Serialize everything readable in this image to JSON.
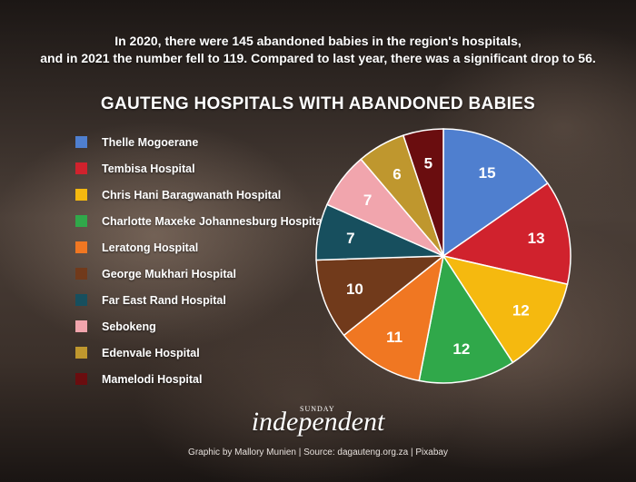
{
  "intro": {
    "line1": "In 2020, there were 145 abandoned babies in the region's hospitals,",
    "line2": "and in 2021 the number fell to 119. Compared to last year, there was a significant drop to 56."
  },
  "chart_data": {
    "type": "pie",
    "title": "GAUTENG HOSPITALS WITH ABANDONED BABIES",
    "legend_position": "left",
    "slices": [
      {
        "label": "Thelle Mogoerane",
        "value": 15,
        "color": "#4f7fcf"
      },
      {
        "label": "Tembisa Hospital",
        "value": 13,
        "color": "#d0222d"
      },
      {
        "label": "Chris Hani Baragwanath Hospital",
        "value": 12,
        "color": "#f5b90f"
      },
      {
        "label": "Charlotte Maxeke Johannesburg Hospital",
        "value": 12,
        "color": "#30a84a"
      },
      {
        "label": "Leratong Hospital",
        "value": 11,
        "color": "#f07722"
      },
      {
        "label": "George Mukhari Hospital",
        "value": 10,
        "color": "#713a1b"
      },
      {
        "label": "Far East Rand Hospital",
        "value": 7,
        "color": "#174f5e"
      },
      {
        "label": "Sebokeng",
        "value": 7,
        "color": "#f1a5ad"
      },
      {
        "label": "Edenvale Hospital",
        "value": 6,
        "color": "#bf972e"
      },
      {
        "label": "Mamelodi Hospital",
        "value": 5,
        "color": "#6a0d0f"
      }
    ]
  },
  "brand": {
    "small": "SUNDAY",
    "name": "independent"
  },
  "credit": "Graphic by Mallory Munien  |  Source: dagauteng.org.za  |  Pixabay"
}
